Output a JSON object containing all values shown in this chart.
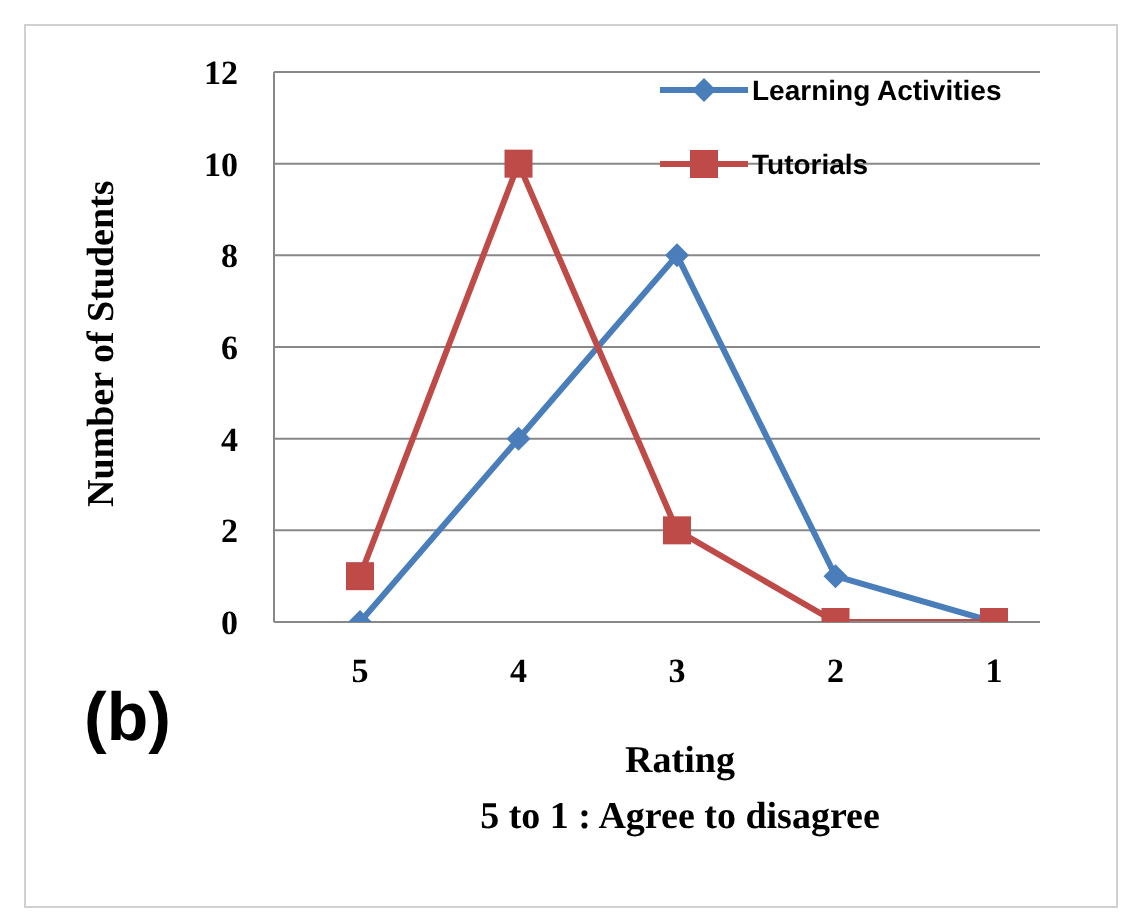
{
  "chart_data": {
    "type": "line",
    "categories": [
      "5",
      "4",
      "3",
      "2",
      "1"
    ],
    "series": [
      {
        "name": "Learning Activities",
        "color": "#4a7ebb",
        "marker": "diamond",
        "values": [
          0,
          4,
          8,
          1,
          0
        ]
      },
      {
        "name": "Tutorials",
        "color": "#be4b48",
        "marker": "square",
        "values": [
          1,
          10,
          2,
          0,
          0
        ]
      }
    ],
    "ylabel": "Number of Students",
    "xlabel": "Rating",
    "annotations": [
      "5 to 1 : Agree to disagree",
      "(b)"
    ],
    "ylim": [
      0,
      12
    ],
    "yticks": [
      0,
      2,
      4,
      6,
      8,
      10,
      12
    ],
    "grid": "y",
    "legend": "top right",
    "line_style": "solid"
  }
}
